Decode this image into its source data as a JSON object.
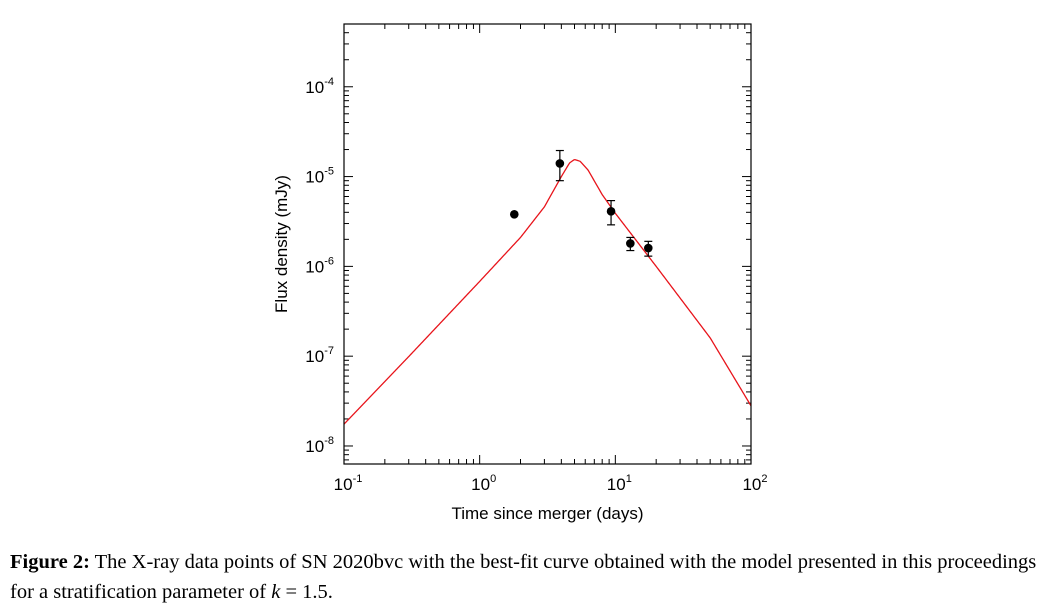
{
  "chart_data": {
    "type": "scatter",
    "xlabel": "Time since merger (days)",
    "ylabel": "Flux density (mJy)",
    "xscale": "log",
    "yscale": "log",
    "xlim": [
      0.1,
      100
    ],
    "ylim": [
      6.3e-09,
      0.0005
    ],
    "x_ticks": [
      {
        "base": "10",
        "exp": "-1",
        "value": 0.1
      },
      {
        "base": "10",
        "exp": "0",
        "value": 1
      },
      {
        "base": "10",
        "exp": "1",
        "value": 10
      },
      {
        "base": "10",
        "exp": "2",
        "value": 100
      }
    ],
    "y_ticks": [
      {
        "base": "10",
        "exp": "-8",
        "value": 1e-08
      },
      {
        "base": "10",
        "exp": "-7",
        "value": 1e-07
      },
      {
        "base": "10",
        "exp": "-6",
        "value": 1e-06
      },
      {
        "base": "10",
        "exp": "-5",
        "value": 1e-05
      },
      {
        "base": "10",
        "exp": "-4",
        "value": 0.0001
      }
    ],
    "points": [
      {
        "x": 1.8,
        "y": 3.8e-06
      },
      {
        "x": 3.9,
        "y": 1.4e-05,
        "y_low": 9e-06,
        "y_high": 1.95e-05
      },
      {
        "x": 9.3,
        "y": 4.1e-06,
        "y_low": 2.9e-06,
        "y_high": 5.4e-06
      },
      {
        "x": 12.9,
        "y": 1.8e-06,
        "y_low": 1.5e-06,
        "y_high": 2.1e-06
      },
      {
        "x": 17.5,
        "y": 1.6e-06,
        "y_low": 1.3e-06,
        "y_high": 1.9e-06
      }
    ],
    "model_curve": {
      "color": "#e8141b",
      "x": [
        0.1,
        0.3,
        1.0,
        2.0,
        3.0,
        4.0,
        4.6,
        5.0,
        5.5,
        6.3,
        8.0,
        10.0,
        20.0,
        50.0,
        100.0
      ],
      "y": [
        1.75e-08,
        9.9e-08,
        6.8e-07,
        2.1e-06,
        4.6e-06,
        1e-05,
        1.42e-05,
        1.55e-05,
        1.48e-05,
        1.18e-05,
        6.3e-06,
        3.9e-06,
        1e-06,
        1.6e-07,
        2.8e-08
      ]
    },
    "point_color": "#000000",
    "grid": false
  },
  "caption": {
    "label": "Figure 2:",
    "text_before_k": " The X-ray data points of SN 2020bvc with the best-fit curve obtained with the model presented in this proceedings for a stratification parameter of ",
    "k_symbol": "k",
    "text_after_k": " = 1.5."
  }
}
